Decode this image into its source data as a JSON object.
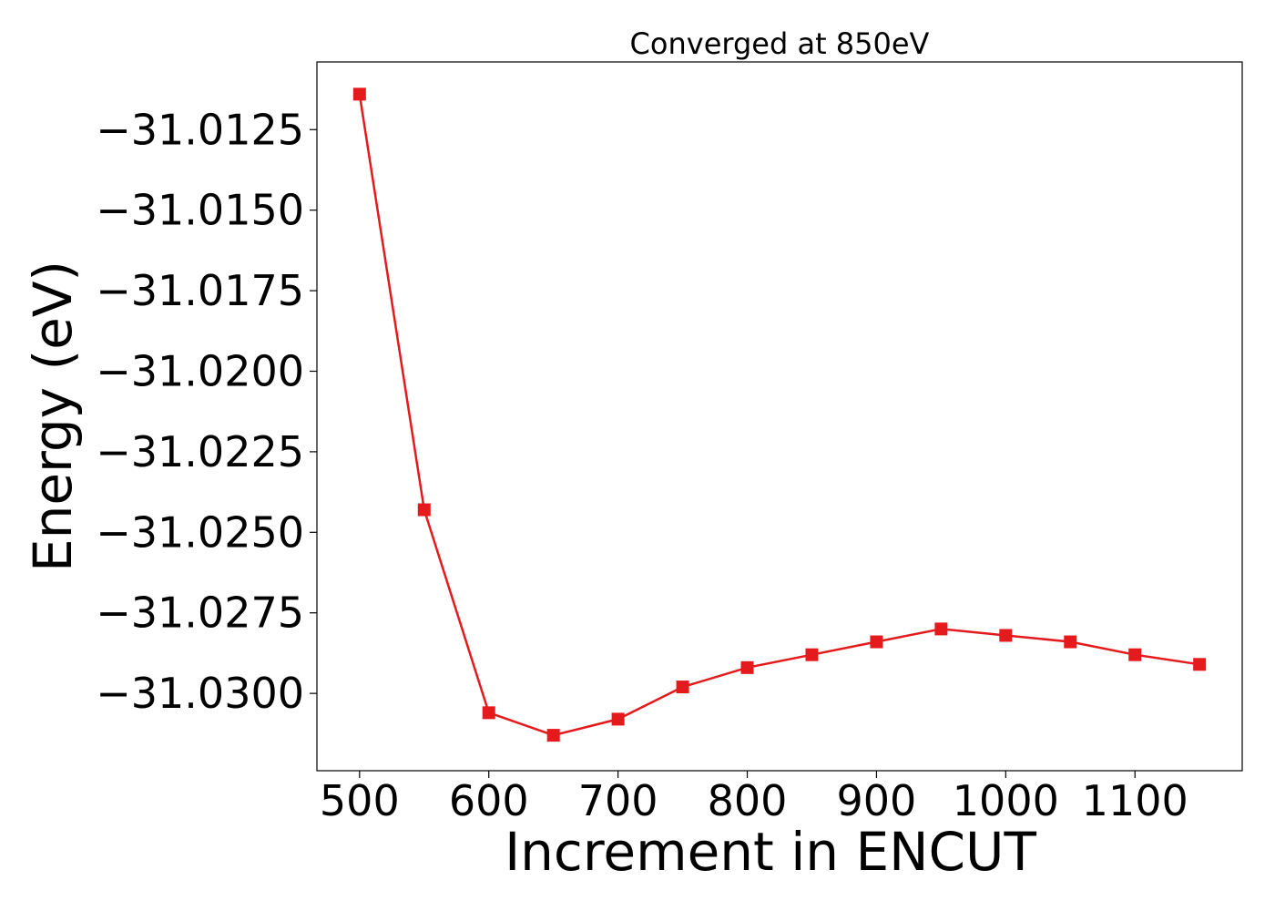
{
  "chart_data": {
    "type": "line",
    "title": "Converged at 850eV",
    "xlabel": "Increment in ENCUT",
    "ylabel": "Energy (eV)",
    "xlim": [
      467,
      1183
    ],
    "ylim": [
      -31.0324,
      -31.0104
    ],
    "x_ticks": [
      500,
      600,
      700,
      800,
      900,
      1000,
      1100
    ],
    "x_tick_labels": [
      "500",
      "600",
      "700",
      "800",
      "900",
      "1000",
      "1100"
    ],
    "y_ticks": [
      -31.0125,
      -31.015,
      -31.0175,
      -31.02,
      -31.0225,
      -31.025,
      -31.0275,
      -31.03
    ],
    "y_tick_labels": [
      "−31.0125",
      "−31.0150",
      "−31.0175",
      "−31.0200",
      "−31.0225",
      "−31.0250",
      "−31.0275",
      "−31.0300"
    ],
    "grid": false,
    "series": [
      {
        "color": "#e41a1c",
        "marker": "square",
        "x": [
          500,
          550,
          600,
          650,
          700,
          750,
          800,
          850,
          900,
          950,
          1000,
          1050,
          1100,
          1150
        ],
        "y": [
          -31.0114,
          -31.0243,
          -31.0306,
          -31.0313,
          -31.0308,
          -31.0298,
          -31.0292,
          -31.0288,
          -31.0284,
          -31.028,
          -31.0282,
          -31.0284,
          -31.0288,
          -31.0291
        ]
      }
    ]
  }
}
